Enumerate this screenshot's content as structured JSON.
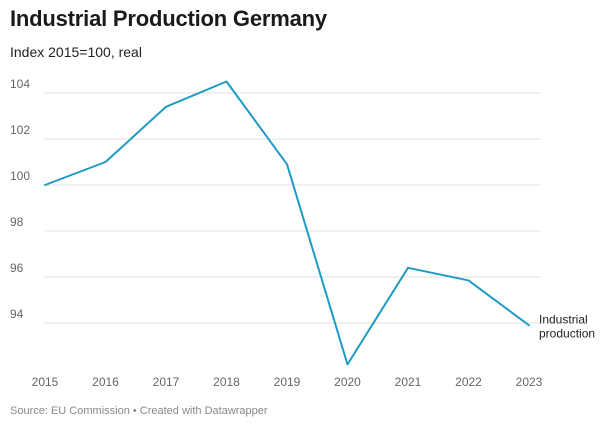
{
  "chart_data": {
    "type": "line",
    "title": "Industrial Production Germany",
    "subtitle": "Index 2015=100, real",
    "xlabel": "",
    "ylabel": "",
    "x": [
      "2015",
      "2016",
      "2017",
      "2018",
      "2019",
      "2020",
      "2021",
      "2022",
      "2023"
    ],
    "y_ticks": [
      94,
      96,
      98,
      100,
      102,
      104
    ],
    "ylim": [
      92,
      105
    ],
    "grid": true,
    "series": [
      {
        "name": "Industrial production",
        "name_lines": [
          "Industrial",
          "production"
        ],
        "color": "#1f9bc4",
        "values": [
          100,
          101,
          103.4,
          104.5,
          100.9,
          92.2,
          96.4,
          95.85,
          93.9
        ]
      }
    ],
    "source": "Source: EU Commission • Created with Datawrapper"
  }
}
